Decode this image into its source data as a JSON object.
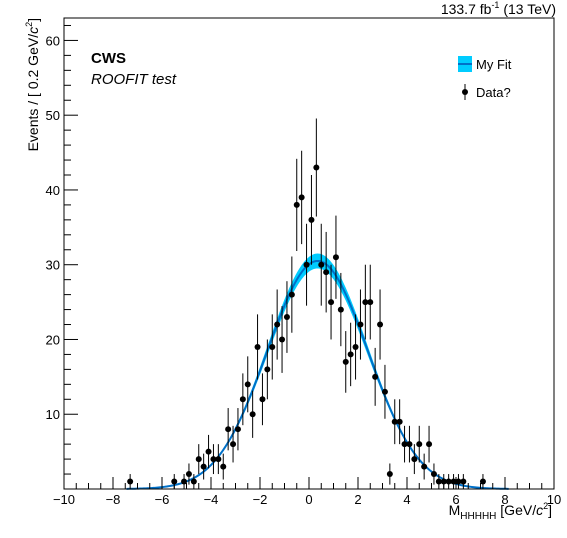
{
  "header": {
    "lumi_value": "133.7 fb",
    "lumi_exp": "-1",
    "lumi_energy": " (13 TeV)"
  },
  "labels": {
    "experiment": "CWS",
    "subtitle": "ROOFIT test"
  },
  "legend": {
    "position": "top-right",
    "fit_label": "My Fit",
    "data_label": "Data?"
  },
  "axes": {
    "x": {
      "title_main": "M",
      "title_sub": "HHHHH",
      "title_unit": " [GeV/",
      "title_unit_c": "c",
      "title_unit_exp": "2",
      "title_unit_close": "]"
    },
    "y": {
      "title_main": "Events / [ 0.2 GeV/",
      "title_c": "c",
      "title_exp": "2",
      "title_close": "]"
    }
  },
  "colors": {
    "fit_line": "#0070c8",
    "fit_band": "#00ccff",
    "data": "#000000",
    "frame": "#000000"
  },
  "chart_data": {
    "type": "scatter",
    "xlim": [
      -10,
      10
    ],
    "ylim": [
      0,
      63
    ],
    "xticks": [
      -10,
      -8,
      -6,
      -4,
      -2,
      0,
      2,
      4,
      6,
      8,
      10
    ],
    "yticks": [
      10,
      20,
      30,
      40,
      50,
      60
    ],
    "grid": false,
    "log_scale": false,
    "fit": {
      "shape": "gaussian",
      "amplitude": 30.5,
      "mean": 0.35,
      "sigma": 2.05,
      "band_width": 1.0
    },
    "data": {
      "x": [
        -7.3,
        -5.5,
        -5.1,
        -4.9,
        -4.7,
        -4.5,
        -4.3,
        -4.1,
        -3.9,
        -3.7,
        -3.5,
        -3.3,
        -3.1,
        -2.9,
        -2.7,
        -2.5,
        -2.3,
        -2.1,
        -1.9,
        -1.7,
        -1.5,
        -1.3,
        -1.1,
        -0.9,
        -0.7,
        -0.5,
        -0.3,
        -0.1,
        0.1,
        0.3,
        0.5,
        0.7,
        0.9,
        1.1,
        1.3,
        1.5,
        1.7,
        1.9,
        2.1,
        2.3,
        2.5,
        2.7,
        2.9,
        3.1,
        3.3,
        3.5,
        3.7,
        3.9,
        4.1,
        4.3,
        4.5,
        4.7,
        4.9,
        5.1,
        5.3,
        5.5,
        5.7,
        5.9,
        6.1,
        6.3,
        7.1
      ],
      "y": [
        1,
        1,
        1,
        2,
        1,
        4,
        3,
        5,
        4,
        4,
        3,
        8,
        6,
        8,
        12,
        14,
        10,
        19,
        12,
        16,
        19,
        22,
        20,
        23,
        26,
        38,
        39,
        30,
        36,
        43,
        30,
        29,
        25,
        31,
        24,
        17,
        18,
        19,
        22,
        25,
        25,
        15,
        22,
        13,
        2,
        9,
        9,
        6,
        6,
        4,
        6,
        3,
        6,
        2,
        1,
        1,
        1,
        1,
        1,
        1,
        1
      ]
    }
  }
}
